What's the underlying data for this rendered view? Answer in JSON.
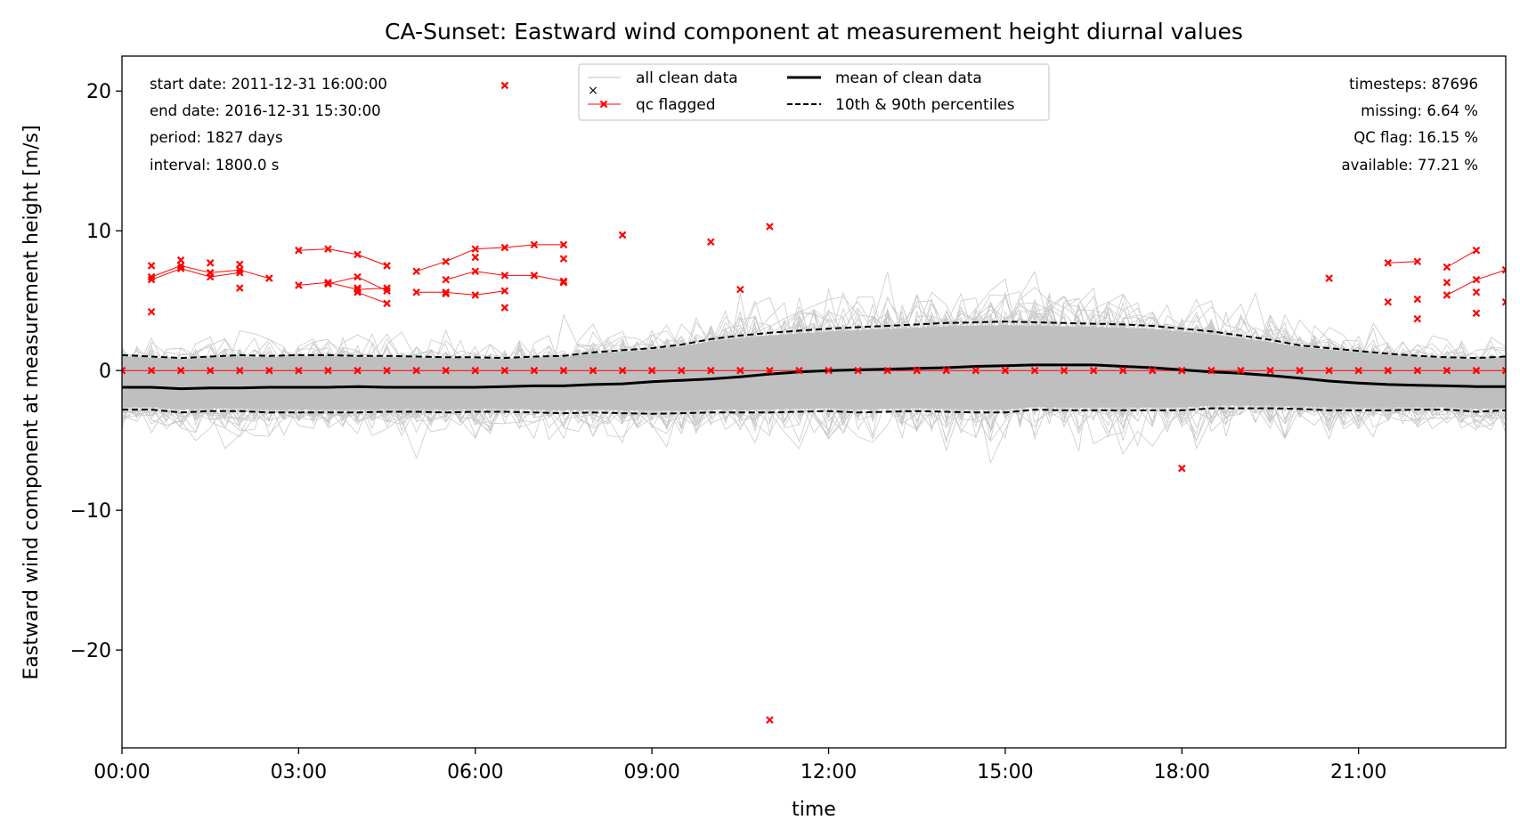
{
  "chart_data": {
    "type": "line",
    "title": "CA-Sunset: Eastward wind component at measurement height diurnal values",
    "xlabel": "time",
    "ylabel": "Eastward wind component at measurement height [m/s]",
    "xlim": [
      0,
      23.5
    ],
    "ylim": [
      -27,
      22.5
    ],
    "x_ticks": [
      0,
      3,
      6,
      9,
      12,
      15,
      18,
      21
    ],
    "x_tick_labels": [
      "00:00",
      "03:00",
      "06:00",
      "09:00",
      "12:00",
      "15:00",
      "18:00",
      "21:00"
    ],
    "y_ticks": [
      -20,
      -10,
      0,
      10,
      20
    ],
    "y_tick_labels": [
      "−20",
      "−10",
      "0",
      "10",
      "20"
    ],
    "grid": false,
    "legend_placement": "top-center",
    "legend": [
      {
        "label": "all clean data",
        "style": "thin-grey-line"
      },
      {
        "label": "qc flagged",
        "style": "red-line-x-marker"
      },
      {
        "label": "mean of clean data",
        "style": "thick-black-line"
      },
      {
        "label": "10th & 90th percentiles",
        "style": "dashed-black-line"
      }
    ],
    "info_left": [
      "start date: 2011-12-31 16:00:00",
      "end date: 2016-12-31 15:30:00",
      "period: 1827 days",
      "interval: 1800.0 s"
    ],
    "info_right": [
      "timesteps: 87696",
      "missing: 6.64 %",
      "QC flag: 16.15 %",
      "available: 77.21 %"
    ],
    "colors": {
      "clean": "#bfbfbf",
      "qc": "#ff0000",
      "mean": "#000000",
      "percentile": "#000000"
    },
    "x_hours": [
      0,
      0.5,
      1,
      1.5,
      2,
      2.5,
      3,
      3.5,
      4,
      4.5,
      5,
      5.5,
      6,
      6.5,
      7,
      7.5,
      8,
      8.5,
      9,
      9.5,
      10,
      10.5,
      11,
      11.5,
      12,
      12.5,
      13,
      13.5,
      14,
      14.5,
      15,
      15.5,
      16,
      16.5,
      17,
      17.5,
      18,
      18.5,
      19,
      19.5,
      20,
      20.5,
      21,
      21.5,
      22,
      22.5,
      23,
      23.5
    ],
    "series": [
      {
        "name": "mean of clean data",
        "values": [
          -1.2,
          -1.2,
          -1.3,
          -1.25,
          -1.25,
          -1.2,
          -1.2,
          -1.2,
          -1.15,
          -1.2,
          -1.2,
          -1.2,
          -1.2,
          -1.15,
          -1.1,
          -1.1,
          -1.0,
          -0.95,
          -0.8,
          -0.7,
          -0.6,
          -0.45,
          -0.25,
          -0.1,
          0.0,
          0.05,
          0.1,
          0.15,
          0.2,
          0.3,
          0.35,
          0.4,
          0.4,
          0.4,
          0.3,
          0.2,
          0.05,
          -0.1,
          -0.2,
          -0.35,
          -0.55,
          -0.75,
          -0.9,
          -1.0,
          -1.05,
          -1.1,
          -1.15,
          -1.15
        ]
      },
      {
        "name": "90th percentile",
        "values": [
          1.1,
          1.0,
          0.9,
          1.0,
          1.1,
          1.05,
          1.1,
          1.1,
          1.05,
          1.05,
          1.0,
          0.95,
          0.95,
          0.9,
          1.0,
          1.05,
          1.3,
          1.45,
          1.6,
          1.85,
          2.25,
          2.5,
          2.7,
          2.85,
          3.0,
          3.1,
          3.2,
          3.3,
          3.4,
          3.45,
          3.5,
          3.45,
          3.4,
          3.35,
          3.3,
          3.2,
          3.0,
          2.8,
          2.5,
          2.2,
          1.8,
          1.6,
          1.4,
          1.2,
          1.05,
          0.95,
          0.9,
          1.0
        ]
      },
      {
        "name": "10th percentile",
        "values": [
          -2.8,
          -2.8,
          -3.0,
          -2.9,
          -2.9,
          -3.0,
          -3.0,
          -3.0,
          -3.0,
          -2.95,
          -2.95,
          -3.0,
          -2.95,
          -2.95,
          -3.0,
          -3.05,
          -3.0,
          -3.05,
          -3.1,
          -3.05,
          -3.0,
          -3.0,
          -3.0,
          -2.95,
          -2.9,
          -3.0,
          -2.95,
          -2.9,
          -2.95,
          -3.0,
          -3.0,
          -2.8,
          -2.85,
          -2.85,
          -2.85,
          -2.85,
          -2.85,
          -2.7,
          -2.7,
          -2.7,
          -2.75,
          -2.85,
          -2.85,
          -2.85,
          -2.8,
          -2.8,
          -2.95,
          -2.85
        ]
      },
      {
        "name": "qc flagged zero line",
        "values": [
          0,
          0,
          0,
          0,
          0,
          0,
          0,
          0,
          0,
          0,
          0,
          0,
          0,
          0,
          0,
          0,
          0,
          0,
          0,
          0,
          0,
          0,
          0,
          0,
          0,
          0,
          0,
          0,
          0,
          0,
          0,
          0,
          0,
          0,
          0,
          0,
          0,
          0,
          0,
          0,
          0,
          0,
          0,
          0,
          0,
          0,
          0,
          0
        ]
      }
    ],
    "qc_tracks": [
      [
        [
          0.5,
          6.7
        ],
        [
          1,
          7.5
        ],
        [
          1.5,
          7.0
        ],
        [
          2,
          7.2
        ],
        [
          2.5,
          6.6
        ]
      ],
      [
        [
          0.5,
          6.5
        ],
        [
          1,
          7.3
        ],
        [
          1.5,
          6.7
        ],
        [
          2,
          7.0
        ]
      ],
      [
        [
          3,
          8.6
        ],
        [
          3.5,
          8.7
        ],
        [
          4,
          8.3
        ],
        [
          4.5,
          7.5
        ]
      ],
      [
        [
          3,
          6.1
        ],
        [
          3.5,
          6.3
        ],
        [
          4,
          5.8
        ],
        [
          4.5,
          5.9
        ]
      ],
      [
        [
          3.5,
          6.2
        ],
        [
          4,
          6.7
        ],
        [
          4.5,
          5.7
        ]
      ],
      [
        [
          4,
          5.6
        ],
        [
          4.5,
          4.8
        ]
      ],
      [
        [
          5,
          7.1
        ],
        [
          5.5,
          7.8
        ],
        [
          6,
          8.7
        ],
        [
          6.5,
          8.8
        ],
        [
          7,
          9.0
        ],
        [
          7.5,
          9.0
        ]
      ],
      [
        [
          5,
          5.6
        ],
        [
          5.5,
          5.6
        ],
        [
          6,
          5.4
        ],
        [
          6.5,
          5.7
        ]
      ],
      [
        [
          5.5,
          6.5
        ],
        [
          6,
          7.1
        ],
        [
          6.5,
          6.8
        ],
        [
          7,
          6.8
        ],
        [
          7.5,
          6.4
        ]
      ],
      [
        [
          21.5,
          7.7
        ],
        [
          22,
          7.8
        ]
      ],
      [
        [
          22.5,
          7.4
        ],
        [
          23,
          8.6
        ]
      ],
      [
        [
          22.5,
          5.4
        ],
        [
          23,
          6.5
        ],
        [
          23.5,
          7.2
        ]
      ]
    ],
    "qc_points": [
      [
        0.5,
        7.5
      ],
      [
        0.5,
        4.2
      ],
      [
        1,
        7.9
      ],
      [
        1.5,
        7.7
      ],
      [
        2,
        7.6
      ],
      [
        2,
        5.9
      ],
      [
        4,
        5.9
      ],
      [
        5.5,
        5.5
      ],
      [
        6,
        8.1
      ],
      [
        6.5,
        4.5
      ],
      [
        6.5,
        20.4
      ],
      [
        7.5,
        6.3
      ],
      [
        7.5,
        8.0
      ],
      [
        8.5,
        9.7
      ],
      [
        10,
        9.2
      ],
      [
        10.5,
        5.8
      ],
      [
        11,
        10.3
      ],
      [
        11,
        -25.0
      ],
      [
        18,
        -7.0
      ],
      [
        20.5,
        6.6
      ],
      [
        21.5,
        4.9
      ],
      [
        22,
        5.1
      ],
      [
        22,
        3.7
      ],
      [
        22.5,
        6.3
      ],
      [
        23,
        4.1
      ],
      [
        23,
        5.6
      ],
      [
        23.5,
        4.9
      ]
    ]
  }
}
